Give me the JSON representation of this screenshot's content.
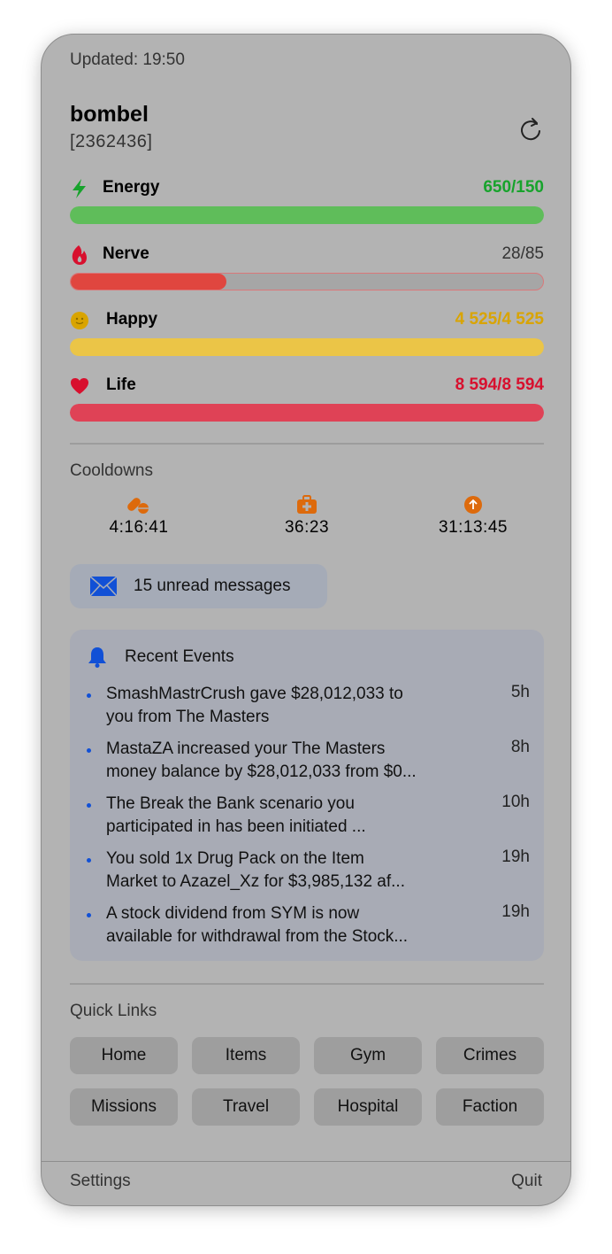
{
  "header": {
    "updated": "Updated: 19:50",
    "name": "bombel",
    "player_id": "[2362436]"
  },
  "stats": [
    {
      "label": "Energy",
      "value": "650/150",
      "color": "#17a32c",
      "bar": "#5fbd5a",
      "fill": 1.0,
      "icon": "bolt-icon"
    },
    {
      "label": "Nerve",
      "value": "28/85",
      "color": "#333333",
      "bar": "#e0463f",
      "fill": 0.33,
      "icon": "flame-icon"
    },
    {
      "label": "Happy",
      "value": "4 525/4 525",
      "color": "#d9a400",
      "bar": "#ebc547",
      "fill": 1.0,
      "icon": "smiley-icon"
    },
    {
      "label": "Life",
      "value": "8 594/8 594",
      "color": "#d8102e",
      "bar": "#df4256",
      "fill": 1.0,
      "icon": "heart-icon"
    }
  ],
  "cooldowns": {
    "title": "Cooldowns",
    "items": [
      {
        "icon": "pills-icon",
        "value": "4:16:41"
      },
      {
        "icon": "medkit-icon",
        "value": "36:23"
      },
      {
        "icon": "booster-arrow-icon",
        "value": "31:13:45"
      }
    ]
  },
  "messages": {
    "label": "15 unread messages"
  },
  "events": {
    "title": "Recent Events",
    "items": [
      {
        "line1": "SmashMastrCrush gave $28,012,033 to",
        "line2": "you from The Masters",
        "time": "5h"
      },
      {
        "line1": "MastaZA increased your The Masters",
        "line2": "money balance by $28,012,033 from $0...",
        "time": "8h"
      },
      {
        "line1": "The Break the Bank scenario you",
        "line2": "participated in has been initiated ...",
        "time": "10h"
      },
      {
        "line1": "You sold 1x Drug Pack on the Item",
        "line2": "Market to Azazel_Xz for $3,985,132 af...",
        "time": "19h"
      },
      {
        "line1": "A stock dividend from SYM is now",
        "line2": "available for withdrawal from the Stock...",
        "time": "19h"
      }
    ]
  },
  "quick_links": {
    "title": "Quick Links",
    "items": [
      "Home",
      "Items",
      "Gym",
      "Crimes",
      "Missions",
      "Travel",
      "Hospital",
      "Faction"
    ]
  },
  "footer": {
    "settings": "Settings",
    "quit": "Quit"
  },
  "colors": {
    "accent_orange": "#dd6a0c",
    "mail_blue": "#1150d6"
  }
}
